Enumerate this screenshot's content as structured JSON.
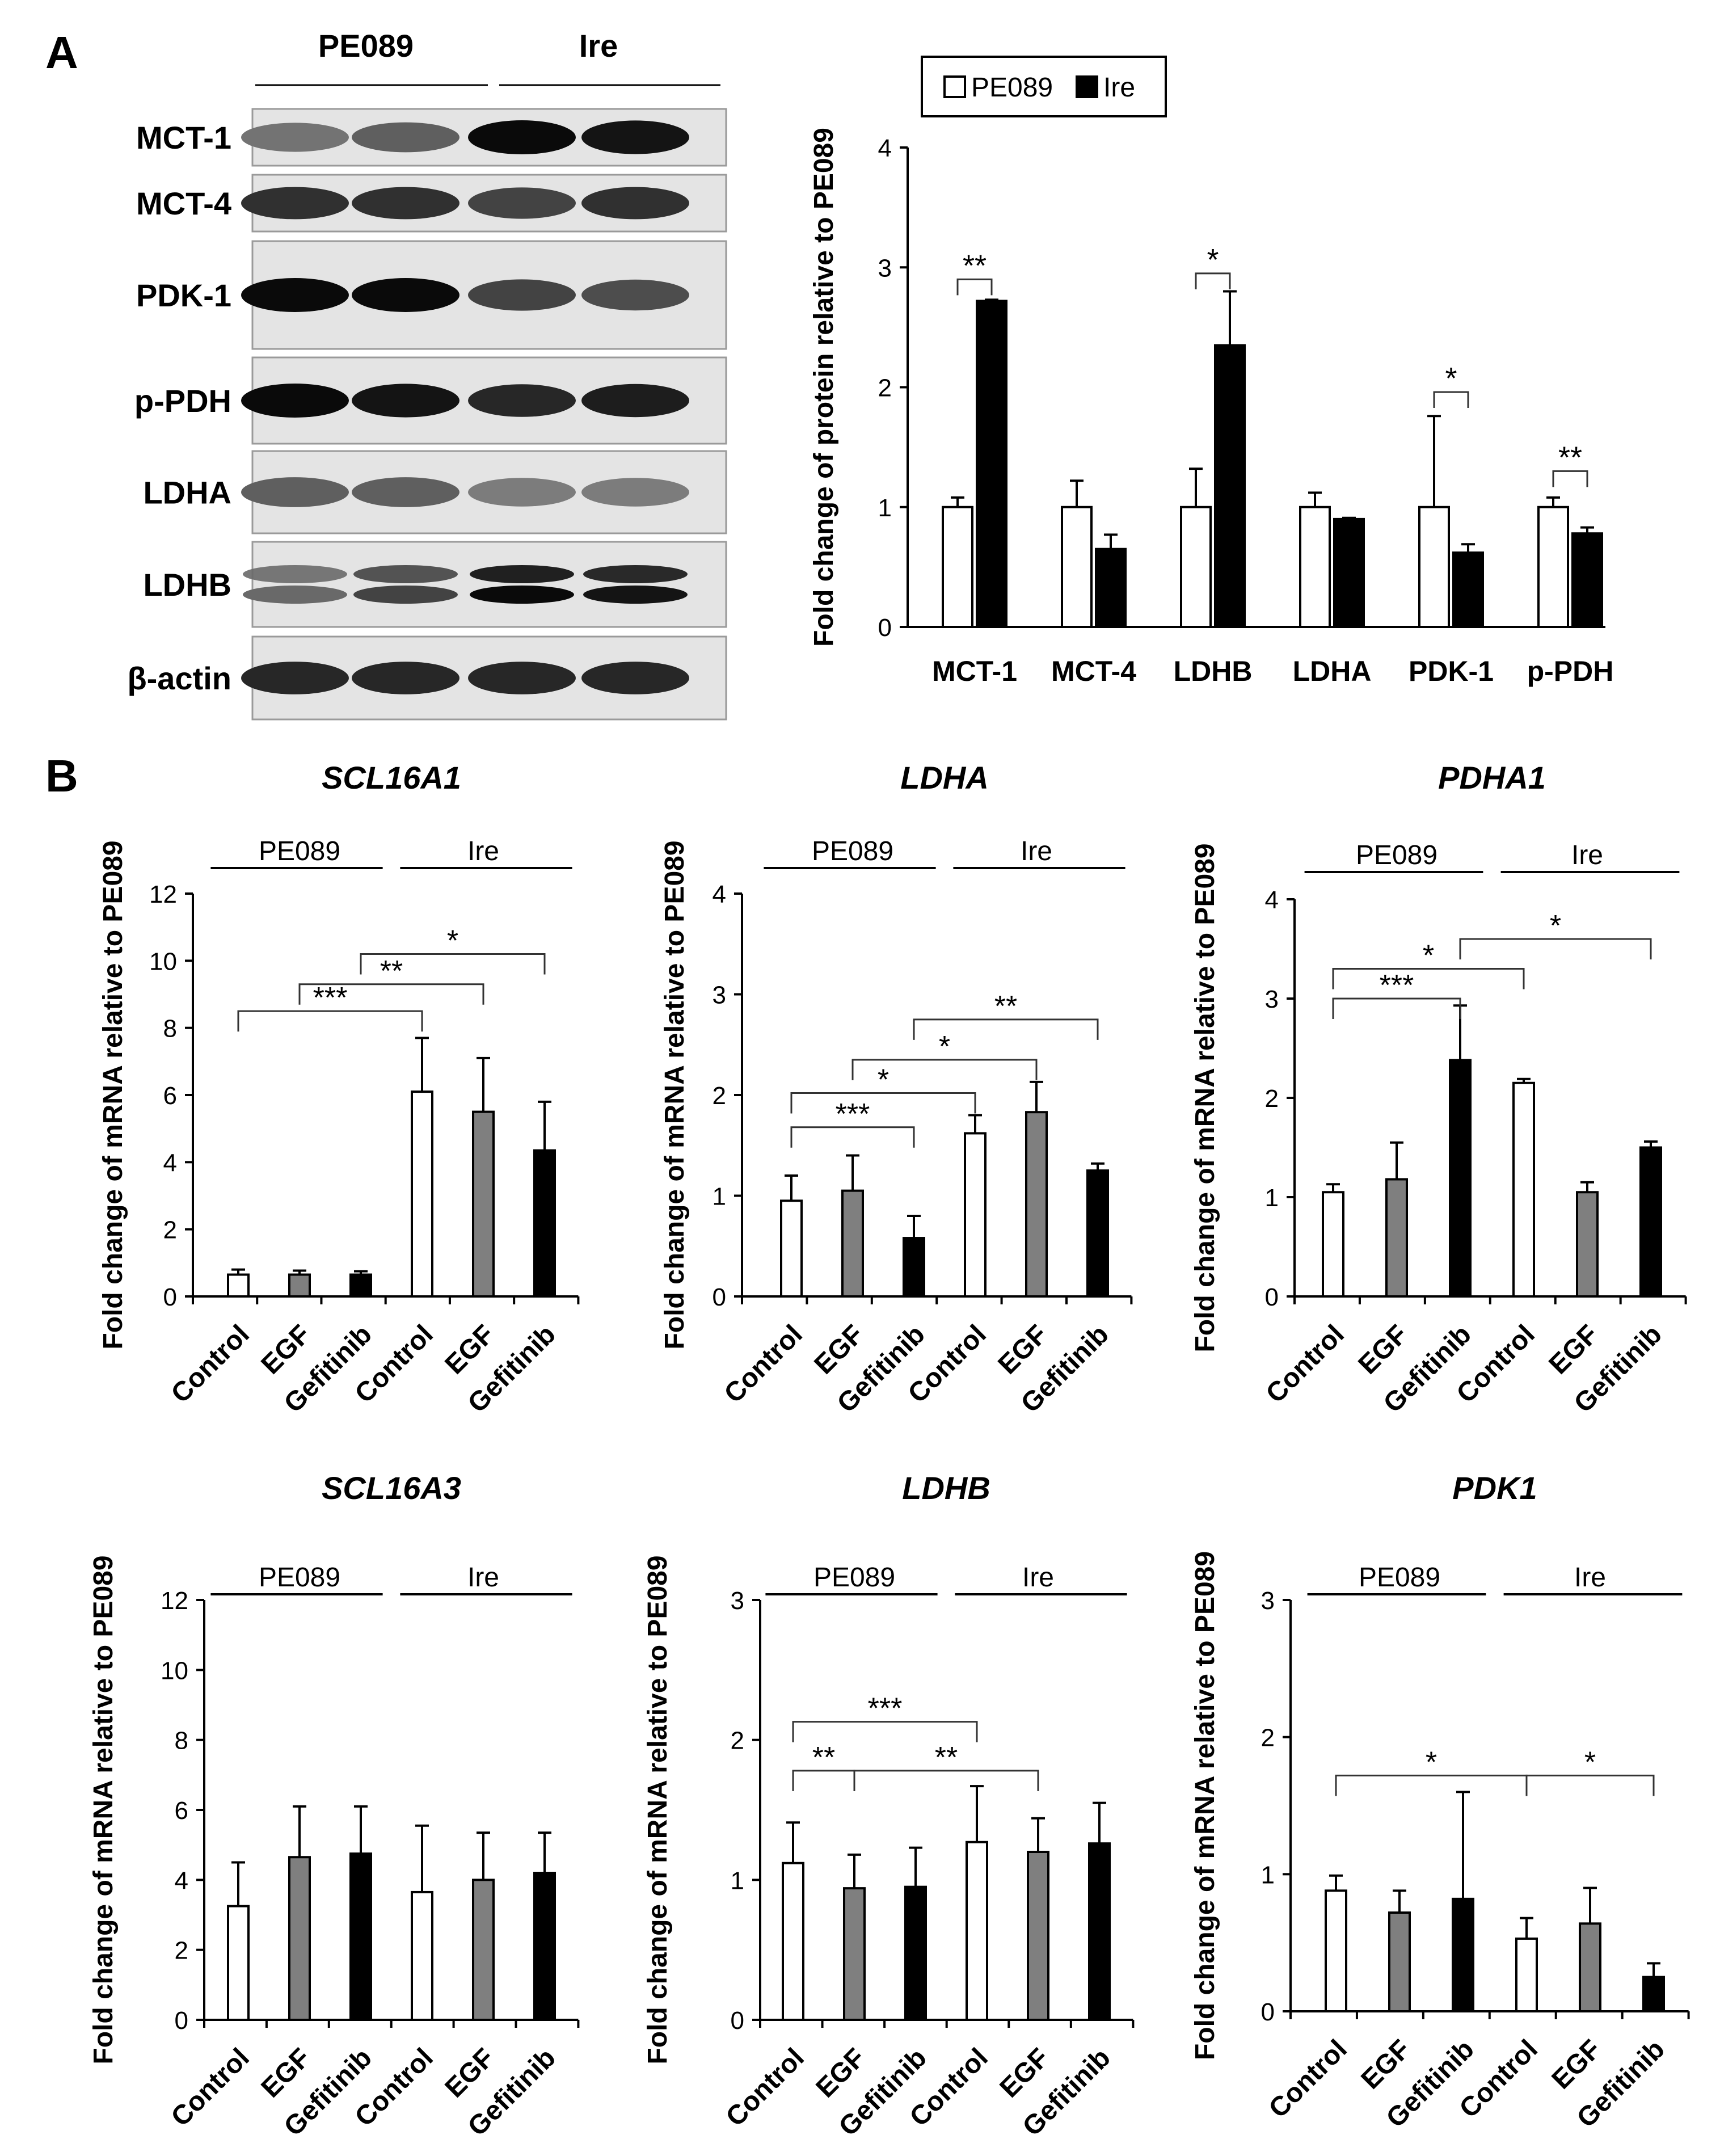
{
  "panel_a": {
    "letter": "A",
    "blot": {
      "groups": [
        "PE089",
        "Ire"
      ],
      "rows": [
        {
          "label": "MCT-1",
          "intensity": [
            0.45,
            0.55,
            1.0,
            0.95
          ]
        },
        {
          "label": "MCT-4",
          "intensity": [
            0.8,
            0.8,
            0.7,
            0.8
          ]
        },
        {
          "label": "PDK-1",
          "intensity": [
            1.0,
            1.0,
            0.7,
            0.65
          ]
        },
        {
          "label": "p-PDH",
          "intensity": [
            1.0,
            0.95,
            0.85,
            0.9
          ]
        },
        {
          "label": "LDHA",
          "intensity": [
            0.55,
            0.55,
            0.4,
            0.4
          ]
        },
        {
          "label": "LDHB",
          "intensity": [
            0.5,
            0.7,
            1.0,
            0.95
          ]
        },
        {
          "label": "β-actin",
          "intensity": [
            0.85,
            0.85,
            0.85,
            0.85
          ]
        }
      ]
    }
  },
  "panel_b": {
    "letter": "B"
  },
  "colors": {
    "white_bar": "#ffffff",
    "gray_bar": "#7f7f7f",
    "black_bar": "#000000",
    "stroke": "#000000"
  },
  "chart_data": [
    {
      "id": "protein",
      "type": "bar",
      "title": "",
      "ylabel": "Fold change of protein relative to PE089",
      "categories": [
        "MCT-1",
        "MCT-4",
        "LDHB",
        "LDHA",
        "PDK-1",
        "p-PDH"
      ],
      "series": [
        {
          "name": "PE089",
          "color": "#ffffff",
          "values": [
            1,
            1,
            1,
            1,
            1,
            1
          ],
          "errors": [
            0.08,
            0.22,
            0.32,
            0.12,
            0.76,
            0.08
          ]
        },
        {
          "name": "Ire",
          "color": "#000000",
          "values": [
            2.72,
            0.65,
            2.35,
            0.9,
            0.62,
            0.78
          ],
          "errors": [
            0.01,
            0.12,
            0.45,
            0.01,
            0.07,
            0.05
          ]
        }
      ],
      "ylim": [
        0,
        4
      ],
      "yticks": [
        0,
        1,
        2,
        3,
        4
      ],
      "legend": "top",
      "significance": [
        {
          "category": 0,
          "label": "**",
          "y": 2.9
        },
        {
          "category": 2,
          "label": "*",
          "y": 2.95
        },
        {
          "category": 4,
          "label": "*",
          "y": 1.96
        },
        {
          "category": 5,
          "label": "**",
          "y": 1.3
        }
      ]
    },
    {
      "id": "scl16a1",
      "type": "bar",
      "title": "SCL16A1",
      "ylabel": "Fold change of mRNA relative to PE089",
      "groups": [
        "PE089",
        "Ire"
      ],
      "categories": [
        "Control",
        "EGF",
        "Gefitinib",
        "Control",
        "EGF",
        "Gefitinib"
      ],
      "values": [
        0.65,
        0.65,
        0.65,
        6.1,
        5.5,
        4.35
      ],
      "errors": [
        0.15,
        0.12,
        0.1,
        1.6,
        1.6,
        1.45
      ],
      "ylim": [
        0,
        12
      ],
      "yticks": [
        0,
        2,
        4,
        6,
        8,
        10,
        12
      ],
      "significance": [
        {
          "from": 0,
          "to": 3,
          "label": "***",
          "y": 8.5
        },
        {
          "from": 1,
          "to": 4,
          "label": "**",
          "y": 9.3
        },
        {
          "from": 2,
          "to": 5,
          "label": "*",
          "y": 10.2
        }
      ]
    },
    {
      "id": "ldha",
      "type": "bar",
      "title": "LDHA",
      "ylabel": "Fold change of mRNA relative to PE089",
      "groups": [
        "PE089",
        "Ire"
      ],
      "categories": [
        "Control",
        "EGF",
        "Gefitinib",
        "Control",
        "EGF",
        "Gefitinib"
      ],
      "values": [
        0.95,
        1.05,
        0.58,
        1.62,
        1.83,
        1.25
      ],
      "errors": [
        0.25,
        0.35,
        0.22,
        0.18,
        0.3,
        0.07
      ],
      "ylim": [
        0,
        4
      ],
      "yticks": [
        0,
        1,
        2,
        3,
        4
      ],
      "significance": [
        {
          "from": 0,
          "to": 2,
          "label": "***",
          "y": 1.68
        },
        {
          "from": 0,
          "to": 3,
          "label": "*",
          "y": 2.02
        },
        {
          "from": 1,
          "to": 4,
          "label": "*",
          "y": 2.35
        },
        {
          "from": 2,
          "to": 5,
          "label": "**",
          "y": 2.75
        }
      ]
    },
    {
      "id": "pdha1",
      "type": "bar",
      "title": "PDHA1",
      "ylabel": "Fold change of mRNA relative to PE089",
      "groups": [
        "PE089",
        "Ire"
      ],
      "categories": [
        "Control",
        "EGF",
        "Gefitinib",
        "Control",
        "EGF",
        "Gefitinib"
      ],
      "values": [
        1.05,
        1.18,
        2.38,
        2.15,
        1.05,
        1.5
      ],
      "errors": [
        0.08,
        0.37,
        0.55,
        0.04,
        0.1,
        0.06
      ],
      "ylim": [
        0,
        4
      ],
      "yticks": [
        0,
        1,
        2,
        3,
        4
      ],
      "significance": [
        {
          "from": 0,
          "to": 2,
          "label": "***",
          "y": 3.0
        },
        {
          "from": 0,
          "to": 3,
          "label": "*",
          "y": 3.3
        },
        {
          "from": 2,
          "to": 5,
          "label": "*",
          "y": 3.6
        }
      ]
    },
    {
      "id": "scl16a3",
      "type": "bar",
      "title": "SCL16A3",
      "ylabel": "Fold change of mRNA relative to PE089",
      "groups": [
        "PE089",
        "Ire"
      ],
      "categories": [
        "Control",
        "EGF",
        "Gefitinib",
        "Control",
        "EGF",
        "Gefitinib"
      ],
      "values": [
        3.25,
        4.65,
        4.75,
        3.65,
        4.0,
        4.2
      ],
      "errors": [
        1.25,
        1.45,
        1.35,
        1.9,
        1.35,
        1.15
      ],
      "ylim": [
        0,
        12
      ],
      "yticks": [
        0,
        2,
        4,
        6,
        8,
        10,
        12
      ],
      "significance": []
    },
    {
      "id": "ldhb",
      "type": "bar",
      "title": "LDHB",
      "ylabel": "Fold change of mRNA relative to PE089",
      "groups": [
        "PE089",
        "Ire"
      ],
      "categories": [
        "Control",
        "EGF",
        "Gefitinib",
        "Control",
        "EGF",
        "Gefitinib"
      ],
      "values": [
        1.12,
        0.94,
        0.95,
        1.27,
        1.2,
        1.26
      ],
      "errors": [
        0.29,
        0.24,
        0.28,
        0.4,
        0.24,
        0.29
      ],
      "ylim": [
        0,
        3
      ],
      "yticks": [
        0,
        1,
        2,
        3
      ],
      "significance": [
        {
          "from": 0,
          "to": 1,
          "label": "**",
          "y": 1.78
        },
        {
          "from": 0,
          "to": 3,
          "label": "***",
          "y": 2.13
        },
        {
          "from": 1,
          "to": 4,
          "label": "**",
          "y": 1.78
        }
      ]
    },
    {
      "id": "pdk1",
      "type": "bar",
      "title": "PDK1",
      "ylabel": "Fold change of mRNA relative to PE089",
      "groups": [
        "PE089",
        "Ire"
      ],
      "categories": [
        "Control",
        "EGF",
        "Gefitinib",
        "Control",
        "EGF",
        "Gefitinib"
      ],
      "values": [
        0.88,
        0.72,
        0.82,
        0.53,
        0.64,
        0.25
      ],
      "errors": [
        0.11,
        0.16,
        0.78,
        0.15,
        0.26,
        0.1
      ],
      "ylim": [
        0,
        3
      ],
      "yticks": [
        0,
        1,
        2,
        3
      ],
      "significance": [
        {
          "from": 0,
          "to": 3,
          "label": "*",
          "y": 1.72
        },
        {
          "from": 3,
          "to": 5,
          "label": "*",
          "y": 1.72
        }
      ]
    }
  ]
}
